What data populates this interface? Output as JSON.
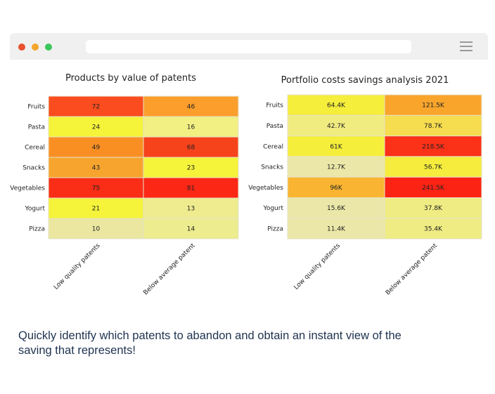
{
  "window": {
    "dots": [
      {
        "name": "close-dot",
        "color": "#e8522f"
      },
      {
        "name": "minimize-dot",
        "color": "#f3a52b"
      },
      {
        "name": "maximize-dot",
        "color": "#3bc75b"
      }
    ],
    "menu_icon": "hamburger-menu-icon"
  },
  "chart_data": [
    {
      "type": "heatmap",
      "title": "Products by value of patents",
      "rows": [
        "Fruits",
        "Pasta",
        "Cereal",
        "Snacks",
        "Vegetables",
        "Yogurt",
        "Pizza"
      ],
      "columns": [
        "Low quality patents",
        "Below average patent"
      ],
      "values": [
        [
          72,
          46
        ],
        [
          24,
          16
        ],
        [
          49,
          68
        ],
        [
          43,
          23
        ],
        [
          75,
          81
        ],
        [
          21,
          13
        ],
        [
          10,
          14
        ]
      ],
      "labels": [
        [
          "72",
          "46"
        ],
        [
          "24",
          "16"
        ],
        [
          "49",
          "68"
        ],
        [
          "43",
          "23"
        ],
        [
          "75",
          "81"
        ],
        [
          "21",
          "13"
        ],
        [
          "10",
          "14"
        ]
      ],
      "colors": [
        [
          "#fa4c1e",
          "#fb9e2c"
        ],
        [
          "#f5f33a",
          "#f2ef83"
        ],
        [
          "#f98f23",
          "#f6431c"
        ],
        [
          "#f7a42f",
          "#f5f33a"
        ],
        [
          "#fa2d17",
          "#fc2715"
        ],
        [
          "#f5f33a",
          "#eeec8f"
        ],
        [
          "#ebe7a0",
          "#edec8f"
        ]
      ]
    },
    {
      "type": "heatmap",
      "title": "Portfolio costs savings analysis 2021",
      "rows": [
        "Fruits",
        "Pasta",
        "Cereal",
        "Snacks",
        "Vegetables",
        "Yogurt",
        "Pizza"
      ],
      "columns": [
        "Low quality patents",
        "Below average patent"
      ],
      "values": [
        [
          64.4,
          121.5
        ],
        [
          42.7,
          78.7
        ],
        [
          61,
          218.5
        ],
        [
          12.7,
          56.7
        ],
        [
          96,
          241.5
        ],
        [
          15.6,
          37.8
        ],
        [
          11.4,
          35.4
        ]
      ],
      "labels": [
        [
          "64.4K",
          "121.5K"
        ],
        [
          "42.7K",
          "78.7K"
        ],
        [
          "61K",
          "218.5K"
        ],
        [
          "12.7K",
          "56.7K"
        ],
        [
          "96K",
          "241.5K"
        ],
        [
          "15.6K",
          "37.8K"
        ],
        [
          "11.4K",
          "35.4K"
        ]
      ],
      "unit": "K",
      "colors": [
        [
          "#f5ee3b",
          "#f9a52c"
        ],
        [
          "#f1ec80",
          "#f6dc4f"
        ],
        [
          "#f5ee3b",
          "#fb3118"
        ],
        [
          "#ebe7a8",
          "#f5ec3d"
        ],
        [
          "#f9b531",
          "#fc2315"
        ],
        [
          "#ebe7a8",
          "#efec84"
        ],
        [
          "#ebe7a8",
          "#efec84"
        ]
      ]
    }
  ],
  "caption": "Quickly identify which patents to abandon and obtain an instant view of the saving that represents!"
}
